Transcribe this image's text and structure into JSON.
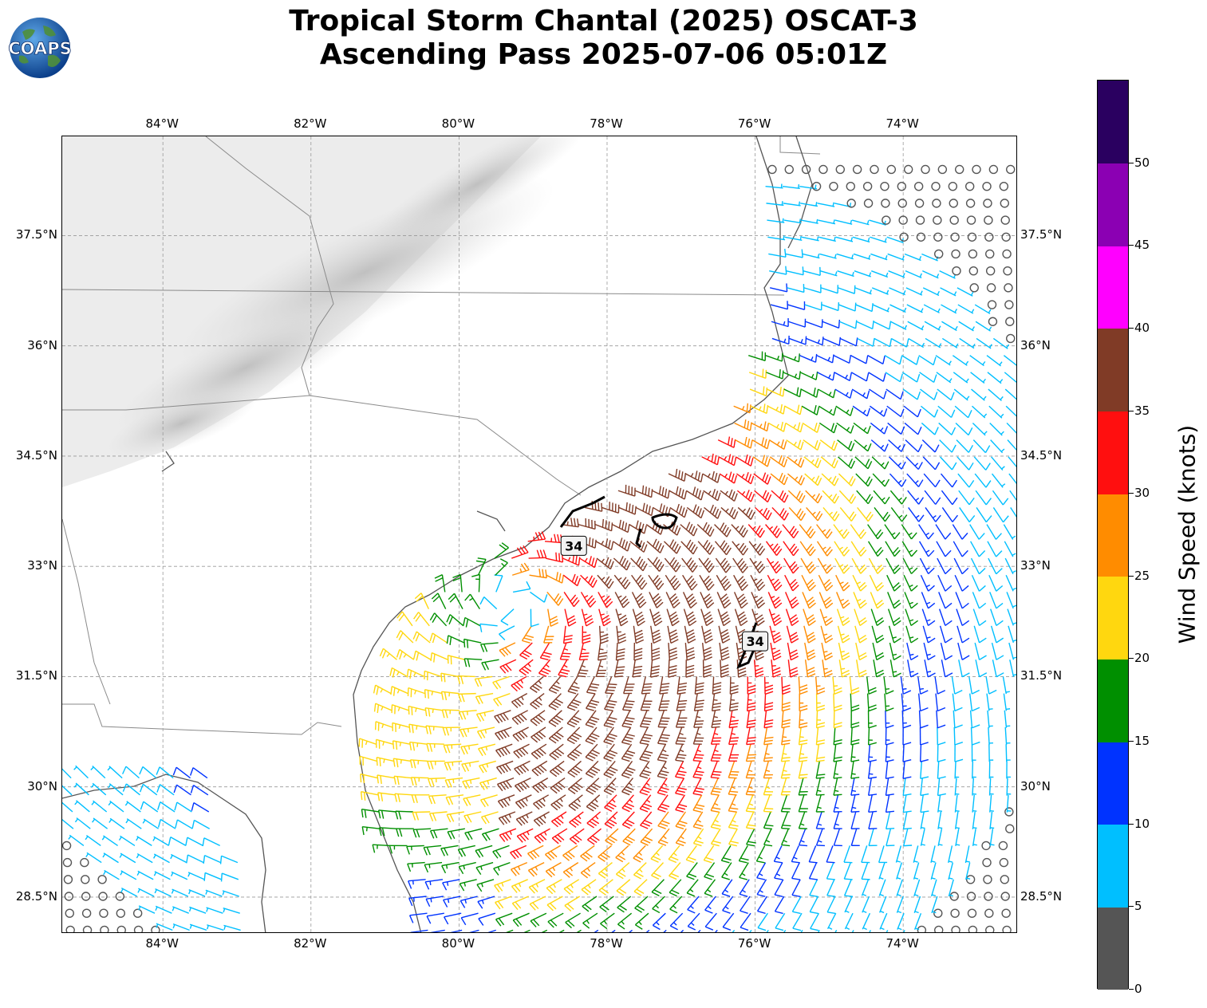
{
  "title": {
    "line1": "Tropical Storm Chantal (2025) OSCAT-3",
    "line2": "Ascending Pass 2025-07-06 05:01Z"
  },
  "logo": {
    "text": "COAPS",
    "icon": "globe-logo"
  },
  "map": {
    "lon_range": [
      -85.36,
      -72.45
    ],
    "lat_range": [
      28.0,
      38.85
    ],
    "lon_ticks": [
      "84°W",
      "82°W",
      "80°W",
      "78°W",
      "76°W",
      "74°W"
    ],
    "lat_ticks": [
      "37.5°N",
      "36°N",
      "34.5°N",
      "33°N",
      "31.5°N",
      "30°N",
      "28.5°N"
    ],
    "gridlines": true,
    "basemap": "grayscale terrain with coastlines and state borders",
    "storm_center": {
      "lon": -79.3,
      "lat": 32.5
    },
    "contour_labels": [
      {
        "text": "34",
        "lon": -78.45,
        "lat": 33.28
      },
      {
        "text": "34",
        "lon": -76.0,
        "lat": 31.98
      }
    ]
  },
  "colorbar": {
    "label": "Wind Speed (knots)",
    "tick_labels": [
      "0",
      "5",
      "10",
      "15",
      "20",
      "25",
      "30",
      "35",
      "40",
      "45",
      "50"
    ],
    "bins": [
      {
        "min": 0,
        "max": 5,
        "color": "#555555"
      },
      {
        "min": 5,
        "max": 10,
        "color": "#00bfff"
      },
      {
        "min": 10,
        "max": 15,
        "color": "#0033ff"
      },
      {
        "min": 15,
        "max": 20,
        "color": "#008f00"
      },
      {
        "min": 20,
        "max": 25,
        "color": "#ffd70f"
      },
      {
        "min": 25,
        "max": 30,
        "color": "#ff8c00"
      },
      {
        "min": 30,
        "max": 35,
        "color": "#ff0f0f"
      },
      {
        "min": 35,
        "max": 40,
        "color": "#803b26"
      },
      {
        "min": 40,
        "max": 45,
        "color": "#ff00ff"
      },
      {
        "min": 45,
        "max": 50,
        "color": "#8b00b3"
      },
      {
        "min": 50,
        "max": 55,
        "color": "#2a0060"
      }
    ]
  }
}
